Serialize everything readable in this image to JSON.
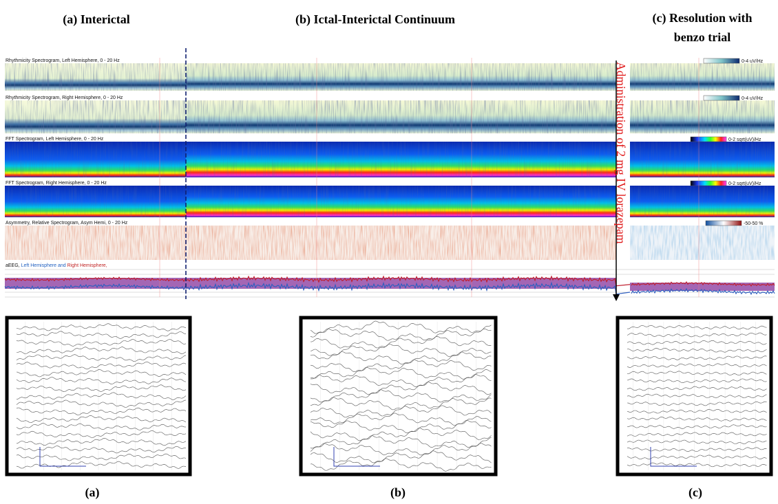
{
  "titles": {
    "a": "(a) Interictal",
    "b": "(b) Ictal-Interictal Continuum",
    "c": "(c) Resolution with benzo trial"
  },
  "panels": [
    {
      "label": "Rhythmicity Spectrogram, Left Hemisphere, 0 - 20 Hz",
      "scale": "0-4 uV/Hz"
    },
    {
      "label": "Rhythmicity Spectrogram, Right Hemisphere, 0 - 20 Hz",
      "scale": "0-4 uV/Hz"
    },
    {
      "label": "FFT Spectrogram, Left Hemisphere, 0 - 20 Hz",
      "scale": "0-2 sqrt(uV)/Hz"
    },
    {
      "label": "FFT Spectrogram, Right Hemisphere, 0 - 20 Hz",
      "scale": "0-2 sqrt(uV)/Hz"
    },
    {
      "label": "Asymmetry, Relative Spectrogram, Asym Hemi, 0 - 20 Hz",
      "scale": "-50-50 %"
    }
  ],
  "aeeg": {
    "prefix": "aEEG,",
    "left": "Left Hemisphere",
    "and": "and",
    "right": "Right Hemisphere,"
  },
  "annotation": "Administration of 2 mg IV lorazepam",
  "captions": [
    "(a)",
    "(b)",
    "(c)"
  ]
}
